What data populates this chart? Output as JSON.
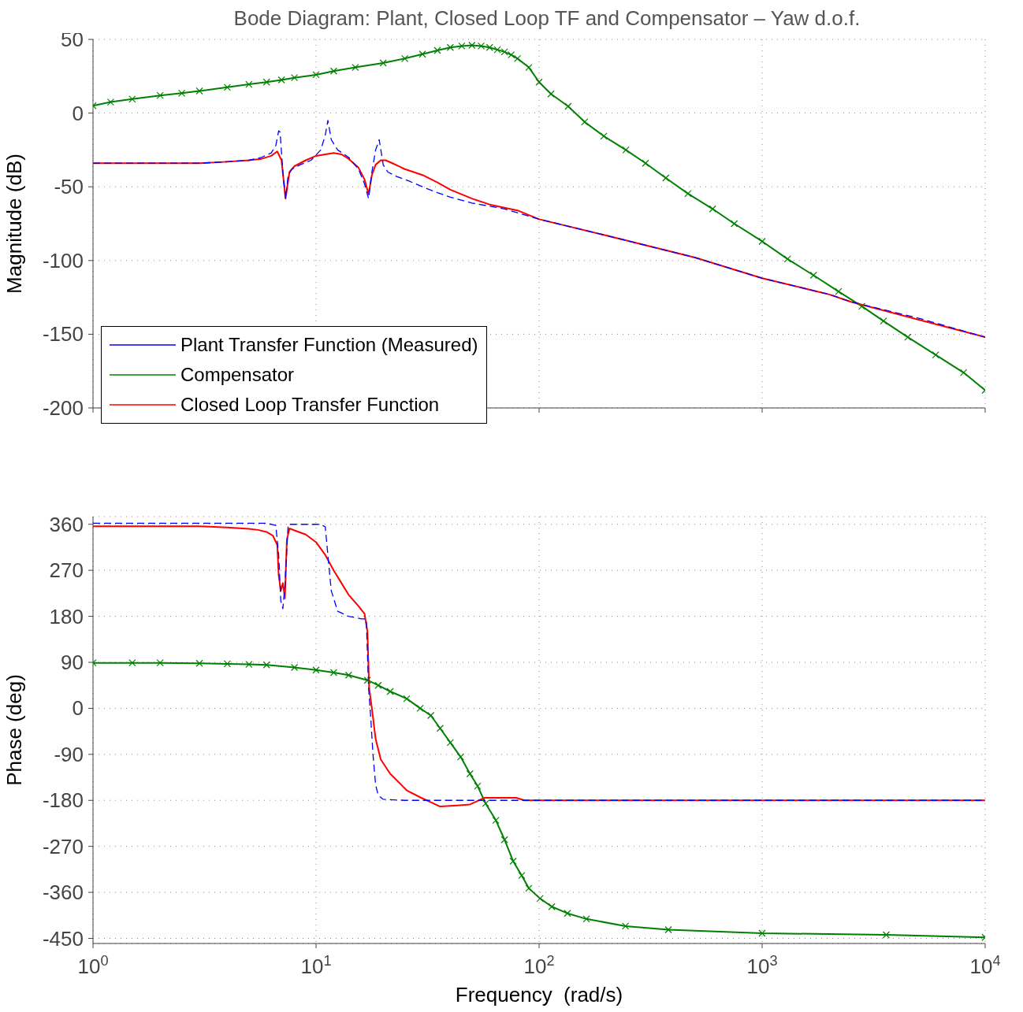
{
  "chart_data": [
    {
      "type": "line",
      "title": "Bode Diagram: Plant, Closed Loop TF and Compensator – Yaw d.o.f.",
      "ylabel": "Magnitude (dB)",
      "log": "x",
      "xlim": [
        1,
        10000
      ],
      "xticks": [
        1,
        10,
        100,
        1000,
        10000
      ],
      "ylim": [
        -200,
        50
      ],
      "yticks": [
        -200,
        -150,
        -100,
        -50,
        0,
        50
      ],
      "grid": true,
      "tick_labels": "y",
      "legend": "bottom left",
      "series": [
        {
          "name": "Plant Transfer Function (Measured)",
          "color": "#0000ff",
          "line_style": "dashed",
          "marker": "none",
          "x": [
            1,
            2,
            3,
            4,
            5,
            5.7,
            6.3,
            6.6,
            6.8,
            6.9,
            7.1,
            7.3,
            7.5,
            7.8,
            8.5,
            9.5,
            10.5,
            11.0,
            11.3,
            11.7,
            12.5,
            14,
            15.5,
            16.5,
            17.2,
            17.8,
            18.5,
            19.2,
            20,
            21,
            23,
            26,
            30,
            35,
            40,
            50,
            70,
            100,
            200,
            500,
            1000,
            2000,
            2500,
            5000,
            10000
          ],
          "values": [
            -34,
            -34,
            -34,
            -33,
            -32,
            -30,
            -27,
            -22,
            -12,
            -13,
            -40,
            -58,
            -42,
            -38,
            -35,
            -32,
            -25,
            -15,
            -5,
            -18,
            -25,
            -30,
            -38,
            -48,
            -58,
            -40,
            -25,
            -18,
            -35,
            -40,
            -43,
            -46,
            -50,
            -54,
            -57,
            -61,
            -65,
            -72,
            -83,
            -98,
            -112,
            -123,
            -128,
            -139,
            -152
          ]
        },
        {
          "name": "Compensator",
          "color": "#008000",
          "line_style": "solid",
          "marker": "cross",
          "x": [
            1,
            1.2,
            1.5,
            2,
            2.5,
            3,
            4,
            5,
            6,
            7,
            8,
            10,
            12,
            15,
            20,
            25,
            30,
            35,
            40,
            45,
            50,
            55,
            60,
            65,
            70,
            75,
            80,
            90,
            100,
            113,
            135,
            160,
            195,
            245,
            300,
            370,
            465,
            600,
            750,
            1000,
            1300,
            1700,
            2200,
            2800,
            3500,
            4500,
            6000,
            8000,
            10000
          ],
          "values": [
            5,
            7.5,
            9.5,
            12,
            13.5,
            15,
            17.5,
            19.5,
            21,
            22.5,
            24,
            26,
            28.5,
            31,
            34,
            37,
            40,
            42.5,
            44.5,
            45.5,
            46,
            45.5,
            44.5,
            43,
            41.5,
            39.5,
            37,
            31,
            21,
            13,
            4.6,
            -6,
            -15.6,
            -25,
            -34,
            -44,
            -54.6,
            -65,
            -75,
            -87,
            -99,
            -110,
            -121,
            -131,
            -141,
            -152,
            -164,
            -176,
            -188
          ]
        },
        {
          "name": "Closed Loop Transfer Function",
          "color": "#ff0000",
          "line_style": "solid",
          "marker": "none",
          "x": [
            1,
            2,
            3,
            4,
            5,
            5.7,
            6.3,
            6.7,
            7.0,
            7.3,
            7.6,
            8,
            9,
            10,
            11,
            12,
            13,
            14,
            15.5,
            16.5,
            17.2,
            17.8,
            18.5,
            19.5,
            20.5,
            22,
            25,
            30,
            35,
            40,
            50,
            60,
            80,
            100,
            200,
            500,
            1000,
            2000,
            2500,
            5000,
            10000
          ],
          "values": [
            -34,
            -34,
            -34,
            -33,
            -32,
            -31,
            -29,
            -26,
            -32,
            -58,
            -40,
            -36,
            -32,
            -29,
            -28,
            -27,
            -28,
            -31,
            -37,
            -45,
            -55,
            -42,
            -35,
            -32,
            -32,
            -34,
            -38,
            -42,
            -47,
            -52,
            -58,
            -62,
            -66,
            -72,
            -83,
            -98,
            -112,
            -123,
            -128,
            -140,
            -152
          ]
        }
      ]
    },
    {
      "type": "line",
      "xlabel": "Frequency  (rad/s)",
      "ylabel": "Phase (deg)",
      "log": "x",
      "xlim": [
        1,
        10000
      ],
      "xticks": [
        {
          "value": 1,
          "label": "10$^{0}$"
        },
        {
          "value": 10,
          "label": "10$^{1}$"
        },
        {
          "value": 100,
          "label": "10$^{2}$"
        },
        {
          "value": 1000,
          "label": "10$^{3}$"
        },
        {
          "value": 10000,
          "label": "10$^{4}$"
        }
      ],
      "ylim": [
        -460,
        375
      ],
      "yticks": [
        -450,
        -360,
        -270,
        -180,
        -90,
        0,
        90,
        180,
        270,
        360
      ],
      "grid": true,
      "series": [
        {
          "color": "#0000ff",
          "line_style": "dashed",
          "marker": "none",
          "x": [
            1,
            3,
            6,
            6.6,
            6.8,
            6.95,
            7.1,
            7.25,
            7.5,
            9,
            10.5,
            11.0,
            11.3,
            11.7,
            12.5,
            14,
            16,
            16.8,
            17.2,
            17.6,
            18,
            18.5,
            19,
            20,
            25,
            50,
            100,
            1000,
            10000
          ],
          "values": [
            362,
            362,
            362,
            358,
            300,
            210,
            195,
            240,
            360,
            360,
            360,
            355,
            300,
            230,
            190,
            180,
            175,
            175,
            40,
            -20,
            -90,
            -150,
            -170,
            -178,
            -180,
            -180,
            -180,
            -180,
            -180
          ]
        },
        {
          "color": "#008000",
          "line_style": "solid",
          "marker": "cross",
          "x": [
            1,
            1.5,
            2,
            3,
            4,
            5,
            6,
            8,
            10,
            12,
            14,
            17,
            19,
            21.5,
            25.5,
            29.3,
            32.7,
            36,
            40,
            44.5,
            49,
            53,
            57.6,
            64,
            70,
            76.5,
            83.6,
            90,
            101,
            114,
            134,
            163,
            244,
            380,
            1000,
            3600,
            10000
          ],
          "values": [
            89,
            89,
            89,
            88,
            87,
            86,
            85,
            80,
            75,
            70,
            65,
            55,
            45,
            33,
            19,
            0,
            -14,
            -39,
            -67,
            -95,
            -128,
            -152,
            -186,
            -219,
            -257,
            -299,
            -327,
            -352,
            -372,
            -388,
            -401,
            -412,
            -426,
            -433,
            -440,
            -443,
            -448
          ]
        },
        {
          "color": "#ff0000",
          "line_style": "solid",
          "marker": "none",
          "x": [
            1,
            3,
            4,
            5,
            5.5,
            6,
            6.4,
            6.7,
            6.8,
            6.95,
            7.1,
            7.25,
            7.4,
            7.6,
            8,
            9,
            10,
            11,
            12,
            13,
            14,
            15.5,
            16.5,
            17,
            17.3,
            17.8,
            18.5,
            19.5,
            21.5,
            25.6,
            29.6,
            36,
            43,
            49,
            57,
            79,
            86,
            100,
            1000,
            10000
          ],
          "values": [
            356,
            356,
            354,
            351,
            349,
            345,
            338,
            320,
            260,
            230,
            245,
            215,
            330,
            352,
            348,
            340,
            325,
            300,
            270,
            245,
            222,
            200,
            185,
            150,
            40,
            0,
            -60,
            -100,
            -128,
            -161,
            -175,
            -192,
            -190,
            -188,
            -175,
            -175,
            -180,
            -180,
            -180,
            -180
          ]
        }
      ]
    }
  ]
}
